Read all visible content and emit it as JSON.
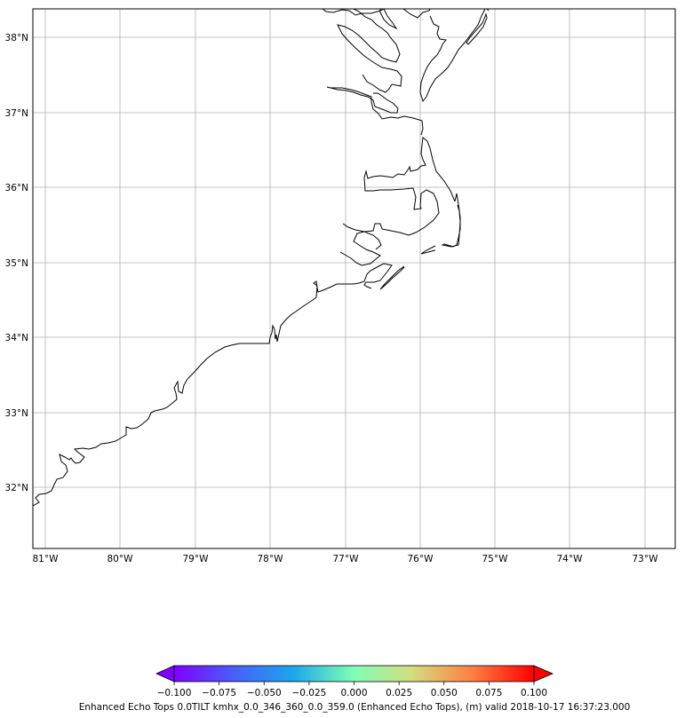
{
  "map": {
    "lat_ticks": [
      "38°N",
      "37°N",
      "36°N",
      "35°N",
      "34°N",
      "33°N",
      "32°N"
    ],
    "lon_ticks": [
      "81°W",
      "80°W",
      "79°W",
      "78°W",
      "77°W",
      "76°W",
      "75°W",
      "74°W",
      "73°W"
    ],
    "gridlines": true
  },
  "colorbar": {
    "ticks": [
      "−0.100",
      "−0.075",
      "−0.050",
      "−0.025",
      "0.000",
      "0.025",
      "0.050",
      "0.075",
      "0.100"
    ],
    "colormap": [
      "#8000ff",
      "#2c7ef7",
      "#2adddd",
      "#80ffb4",
      "#d4dd80",
      "#ff7e41",
      "#ff0000"
    ],
    "extend": "both",
    "caption": "Enhanced Echo Tops 0.0TILT kmhx_0.0_346_360_0.0_359.0 (Enhanced Echo Tops), (m) valid 2018-10-17 16:37:23.000"
  }
}
